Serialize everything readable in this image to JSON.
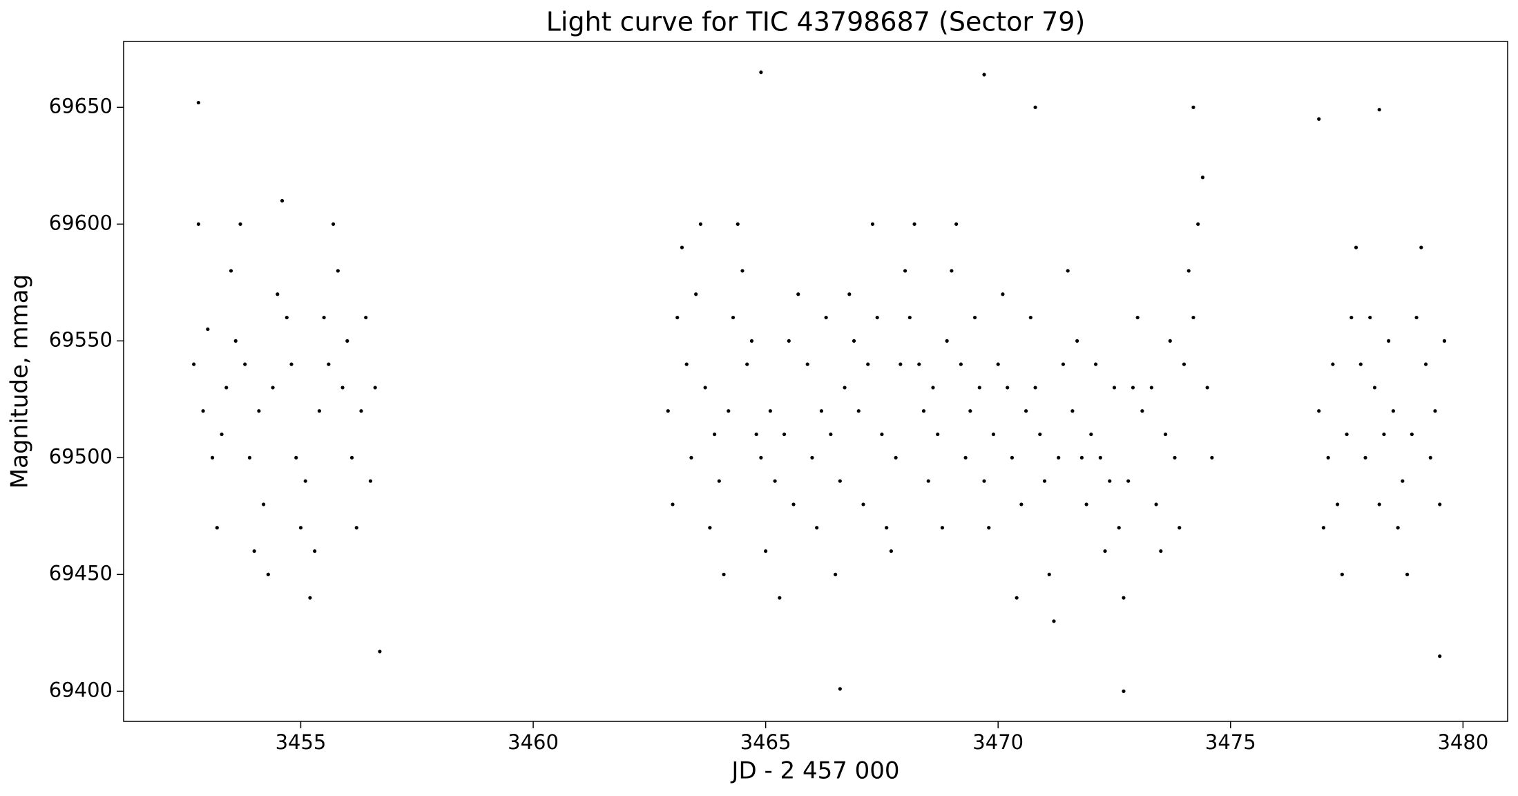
{
  "chart_data": {
    "type": "scatter",
    "title": "Light curve for TIC 43798687 (Sector 79)",
    "x_label": "JD - 2 457 000",
    "y_label": "Magnitude, mmag",
    "xlim": [
      3451.19,
      3480.96
    ],
    "ylim": [
      69387.1,
      69678.2
    ],
    "xticks": [
      3455,
      3460,
      3465,
      3470,
      3475,
      3480
    ],
    "yticks": [
      69400,
      69450,
      69500,
      69550,
      69600,
      69650
    ],
    "grid": false,
    "series": [
      {
        "name": "TIC 43798687",
        "color": "#000000",
        "x": [
          3452.7,
          3452.8,
          3452.9,
          3453.0,
          3453.1,
          3453.2,
          3453.3,
          3453.4,
          3453.5,
          3453.6,
          3453.7,
          3453.8,
          3453.9,
          3454.0,
          3454.1,
          3454.2,
          3454.3,
          3454.4,
          3454.5,
          3454.6,
          3454.7,
          3454.8,
          3454.9,
          3455.0,
          3455.1,
          3455.2,
          3455.3,
          3455.4,
          3455.5,
          3455.6,
          3455.7,
          3455.8,
          3455.9,
          3456.0,
          3456.1,
          3456.2,
          3456.3,
          3456.4,
          3456.5,
          3456.6,
          3456.7,
          3462.9,
          3463.0,
          3463.1,
          3463.2,
          3463.3,
          3463.4,
          3463.5,
          3463.6,
          3463.7,
          3463.8,
          3463.9,
          3464.0,
          3464.1,
          3464.2,
          3464.3,
          3464.4,
          3464.5,
          3464.6,
          3464.7,
          3464.8,
          3464.9,
          3465.0,
          3465.1,
          3465.2,
          3465.3,
          3465.4,
          3465.5,
          3465.6,
          3465.7,
          3465.9,
          3466.0,
          3466.1,
          3466.2,
          3466.3,
          3466.4,
          3466.5,
          3466.6,
          3466.7,
          3466.8,
          3466.9,
          3467.0,
          3467.1,
          3467.2,
          3467.3,
          3467.4,
          3467.5,
          3467.6,
          3467.7,
          3467.8,
          3467.9,
          3468.0,
          3468.1,
          3468.2,
          3468.3,
          3468.4,
          3468.5,
          3468.6,
          3468.7,
          3468.8,
          3468.9,
          3469.0,
          3469.1,
          3469.2,
          3469.3,
          3469.4,
          3469.5,
          3469.6,
          3469.7,
          3469.8,
          3469.9,
          3470.0,
          3470.1,
          3470.2,
          3470.3,
          3470.4,
          3470.5,
          3470.6,
          3470.7,
          3470.8,
          3470.9,
          3471.0,
          3471.1,
          3471.2,
          3471.3,
          3471.4,
          3471.5,
          3471.6,
          3471.7,
          3471.8,
          3471.9,
          3472.0,
          3472.1,
          3472.2,
          3472.3,
          3472.4,
          3472.5,
          3472.6,
          3472.7,
          3472.8,
          3472.9,
          3473.0,
          3473.1,
          3473.3,
          3473.4,
          3473.5,
          3473.6,
          3473.7,
          3473.8,
          3473.9,
          3474.0,
          3474.1,
          3474.2,
          3474.3,
          3474.4,
          3474.5,
          3474.6,
          3476.9,
          3477.0,
          3477.1,
          3477.2,
          3477.3,
          3477.4,
          3477.5,
          3477.6,
          3477.7,
          3477.8,
          3477.9,
          3478.0,
          3478.1,
          3478.2,
          3478.3,
          3478.4,
          3478.5,
          3478.6,
          3478.7,
          3478.8,
          3478.9,
          3479.0,
          3479.1,
          3479.2,
          3479.3,
          3479.4,
          3479.5,
          3479.6,
          3452.8,
          3464.9,
          3469.7,
          3466.6,
          3472.7,
          3476.9,
          3479.5,
          3470.8,
          3474.2,
          3478.2
        ],
        "y": [
          69540,
          69600,
          69520,
          69555,
          69500,
          69470,
          69510,
          69530,
          69580,
          69550,
          69600,
          69540,
          69500,
          69460,
          69520,
          69480,
          69450,
          69530,
          69570,
          69610,
          69560,
          69540,
          69500,
          69470,
          69490,
          69440,
          69460,
          69520,
          69560,
          69540,
          69600,
          69580,
          69530,
          69550,
          69500,
          69470,
          69520,
          69560,
          69490,
          69530,
          69417,
          69520,
          69480,
          69560,
          69590,
          69540,
          69500,
          69570,
          69600,
          69530,
          69470,
          69510,
          69490,
          69450,
          69520,
          69560,
          69600,
          69580,
          69540,
          69550,
          69510,
          69500,
          69460,
          69520,
          69490,
          69440,
          69510,
          69550,
          69480,
          69570,
          69540,
          69500,
          69470,
          69520,
          69560,
          69510,
          69450,
          69490,
          69530,
          69570,
          69550,
          69520,
          69480,
          69540,
          69600,
          69560,
          69510,
          69470,
          69460,
          69500,
          69540,
          69580,
          69560,
          69600,
          69540,
          69520,
          69490,
          69530,
          69510,
          69470,
          69550,
          69580,
          69600,
          69540,
          69500,
          69520,
          69560,
          69530,
          69490,
          69470,
          69510,
          69540,
          69570,
          69530,
          69500,
          69440,
          69480,
          69520,
          69560,
          69530,
          69510,
          69490,
          69450,
          69430,
          69500,
          69540,
          69580,
          69520,
          69550,
          69500,
          69480,
          69510,
          69540,
          69500,
          69460,
          69490,
          69530,
          69470,
          69440,
          69490,
          69530,
          69560,
          69520,
          69530,
          69480,
          69460,
          69510,
          69550,
          69500,
          69470,
          69540,
          69580,
          69560,
          69600,
          69620,
          69530,
          69500,
          69520,
          69470,
          69500,
          69540,
          69480,
          69450,
          69510,
          69560,
          69590,
          69540,
          69500,
          69560,
          69530,
          69480,
          69510,
          69550,
          69520,
          69470,
          69490,
          69450,
          69510,
          69560,
          69590,
          69540,
          69500,
          69520,
          69480,
          69550,
          69652,
          69665,
          69664,
          69401,
          69400,
          69645,
          69415,
          69650,
          69650,
          69649
        ]
      }
    ]
  }
}
